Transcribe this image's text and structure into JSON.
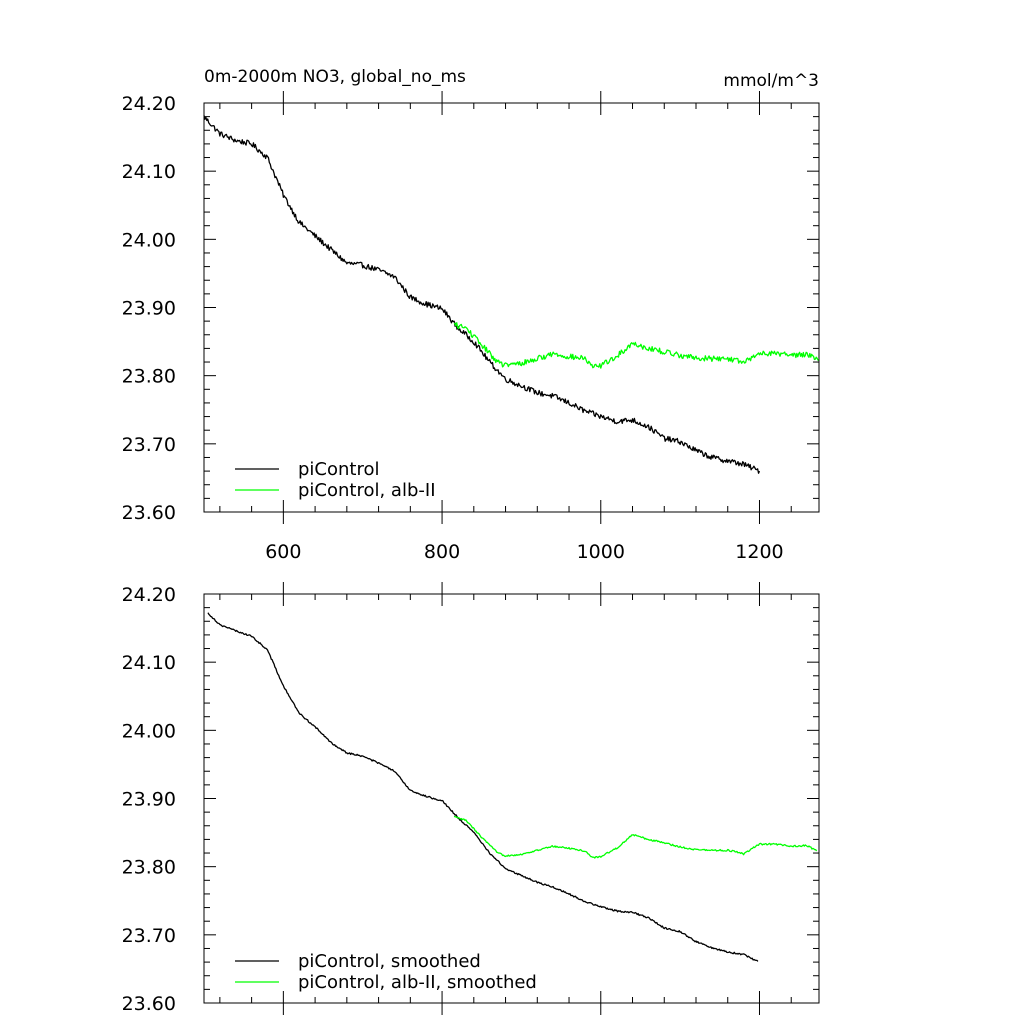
{
  "colors": {
    "piControl": "#000000",
    "alb_II": "#00ff00",
    "axis": "#000000",
    "background": "#ffffff"
  },
  "chart_data": [
    {
      "type": "line",
      "title": "0m-2000m NO3, global_no_ms",
      "units": "mmol/m^3",
      "xlabel": "",
      "ylabel": "",
      "xlim": [
        500,
        1275
      ],
      "ylim": [
        23.6,
        24.2
      ],
      "xticks": [
        600,
        800,
        1000,
        1200
      ],
      "xtick_labels": [
        "600",
        "800",
        "1000",
        "1200"
      ],
      "yticks": [
        23.6,
        23.7,
        23.8,
        23.9,
        24.0,
        24.1,
        24.2
      ],
      "ytick_labels": [
        "23.60",
        "23.70",
        "23.80",
        "23.90",
        "24.00",
        "24.10",
        "24.20"
      ],
      "grid": false,
      "legend_position": "bottom-left",
      "series": [
        {
          "name": "piControl",
          "color": "#000000",
          "x": [
            500,
            520,
            540,
            560,
            580,
            600,
            620,
            640,
            660,
            680,
            700,
            720,
            740,
            760,
            780,
            800,
            820,
            840,
            860,
            880,
            900,
            920,
            940,
            960,
            980,
            1000,
            1020,
            1040,
            1060,
            1080,
            1100,
            1120,
            1140,
            1160,
            1180,
            1200
          ],
          "y": [
            24.18,
            24.155,
            24.145,
            24.14,
            24.12,
            24.065,
            24.025,
            24.005,
            23.985,
            23.965,
            23.962,
            23.955,
            23.945,
            23.915,
            23.905,
            23.898,
            23.87,
            23.85,
            23.82,
            23.795,
            23.785,
            23.775,
            23.77,
            23.76,
            23.748,
            23.74,
            23.733,
            23.735,
            23.725,
            23.708,
            23.703,
            23.69,
            23.68,
            23.675,
            23.67,
            23.66
          ],
          "noise": 0.004
        },
        {
          "name": "piControl, alb-II",
          "color": "#00ff00",
          "x": [
            815,
            830,
            850,
            870,
            880,
            900,
            920,
            940,
            960,
            980,
            990,
            1000,
            1020,
            1040,
            1060,
            1080,
            1100,
            1120,
            1140,
            1160,
            1175,
            1180,
            1190,
            1200,
            1220,
            1240,
            1260,
            1275
          ],
          "y": [
            23.875,
            23.87,
            23.845,
            23.82,
            23.815,
            23.818,
            23.825,
            23.832,
            23.828,
            23.825,
            23.812,
            23.815,
            23.828,
            23.848,
            23.84,
            23.835,
            23.83,
            23.826,
            23.825,
            23.825,
            23.822,
            23.818,
            23.826,
            23.833,
            23.833,
            23.83,
            23.832,
            23.823
          ],
          "noise": 0.004
        }
      ]
    },
    {
      "type": "line",
      "title": "",
      "xlabel": "",
      "ylabel": "",
      "xlim": [
        500,
        1275
      ],
      "ylim": [
        23.6,
        24.2
      ],
      "xticks": [
        600,
        800,
        1000,
        1200
      ],
      "xtick_labels": [],
      "yticks": [
        23.6,
        23.7,
        23.8,
        23.9,
        24.0,
        24.1,
        24.2
      ],
      "ytick_labels": [
        "23.60",
        "23.70",
        "23.80",
        "23.90",
        "24.00",
        "24.10",
        "24.20"
      ],
      "grid": false,
      "legend_position": "bottom-left",
      "series": [
        {
          "name": "piControl, smoothed",
          "color": "#000000",
          "x": [
            505,
            520,
            540,
            560,
            580,
            600,
            620,
            640,
            660,
            680,
            700,
            720,
            740,
            760,
            780,
            800,
            820,
            840,
            860,
            880,
            900,
            920,
            940,
            960,
            980,
            1000,
            1020,
            1040,
            1060,
            1080,
            1100,
            1120,
            1140,
            1160,
            1180,
            1198
          ],
          "y": [
            24.172,
            24.155,
            24.146,
            24.138,
            24.118,
            24.065,
            24.025,
            24.005,
            23.982,
            23.967,
            23.962,
            23.952,
            23.94,
            23.912,
            23.903,
            23.897,
            23.872,
            23.85,
            23.82,
            23.797,
            23.787,
            23.777,
            23.77,
            23.76,
            23.749,
            23.741,
            23.735,
            23.733,
            23.725,
            23.71,
            23.705,
            23.69,
            23.681,
            23.675,
            23.671,
            23.661
          ],
          "noise": 0.0012
        },
        {
          "name": "piControl, alb-II, smoothed",
          "color": "#00ff00",
          "x": [
            815,
            830,
            850,
            870,
            880,
            900,
            920,
            940,
            960,
            980,
            990,
            1000,
            1020,
            1040,
            1060,
            1080,
            1100,
            1120,
            1140,
            1160,
            1175,
            1180,
            1190,
            1200,
            1220,
            1240,
            1260,
            1272
          ],
          "y": [
            23.873,
            23.868,
            23.843,
            23.82,
            23.816,
            23.818,
            23.824,
            23.83,
            23.827,
            23.823,
            23.813,
            23.815,
            23.827,
            23.847,
            23.84,
            23.835,
            23.829,
            23.825,
            23.824,
            23.824,
            23.821,
            23.818,
            23.826,
            23.833,
            23.833,
            23.83,
            23.831,
            23.823
          ],
          "noise": 0.0012
        }
      ]
    }
  ]
}
